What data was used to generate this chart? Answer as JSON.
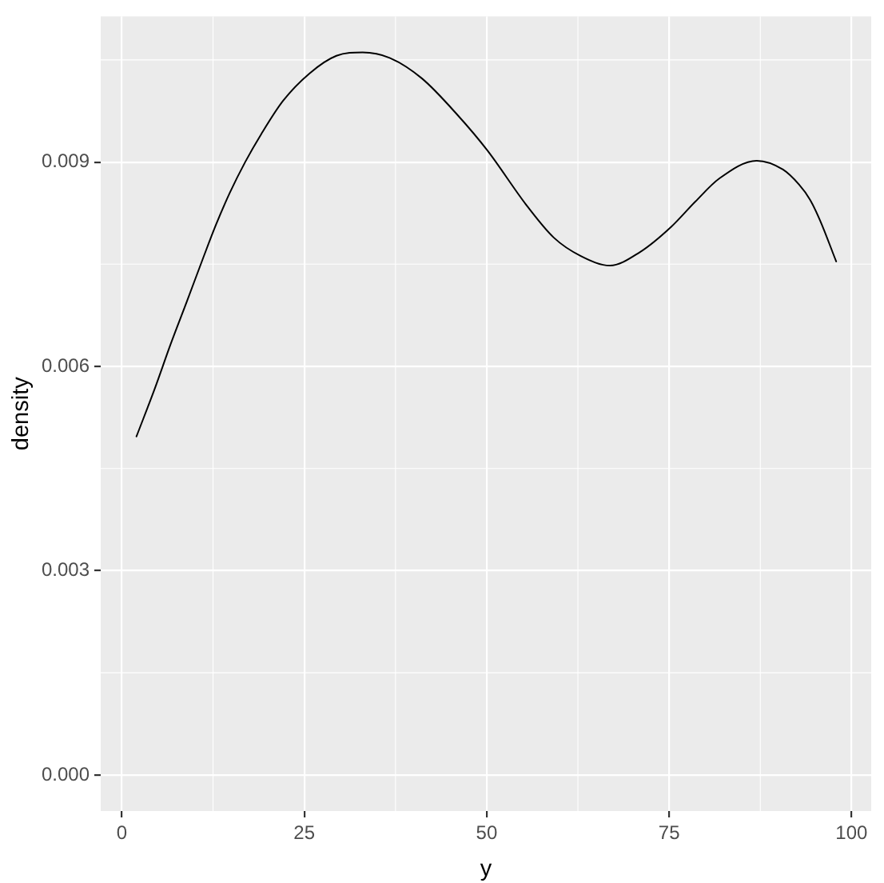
{
  "chart_data": {
    "type": "line",
    "xlabel": "y",
    "ylabel": "density",
    "x": [
      2.0,
      4.5,
      6.7,
      8.9,
      11.1,
      12.9,
      14.8,
      16.9,
      19.1,
      22.1,
      25.7,
      29.4,
      33.0,
      36.7,
      41.1,
      46.1,
      50.1,
      55.5,
      59.2,
      62.9,
      66.9,
      70.9,
      75.3,
      78.6,
      81.9,
      87.0,
      90.6,
      92.8,
      94.3,
      95.7,
      97.9
    ],
    "series": [
      {
        "color": "#000000",
        "values": [
          0.00497,
          0.00567,
          0.00633,
          0.00695,
          0.00758,
          0.00808,
          0.00855,
          0.009,
          0.00941,
          0.0099,
          0.0103,
          0.01056,
          0.01061,
          0.01053,
          0.01023,
          0.00968,
          0.00917,
          0.00836,
          0.00789,
          0.00762,
          0.00748,
          0.00767,
          0.00805,
          0.00842,
          0.00876,
          0.00902,
          0.00889,
          0.00867,
          0.00845,
          0.00814,
          0.00754
        ]
      }
    ],
    "xlim": [
      -2.9,
      102.7
    ],
    "xticks": [
      0,
      25,
      50,
      75,
      100
    ],
    "ylim": [
      -0.00053,
      0.01114
    ],
    "yticks": [
      {
        "value": 0,
        "label": "0.000"
      },
      0.003,
      0.006,
      0.009
    ],
    "grid": true
  }
}
